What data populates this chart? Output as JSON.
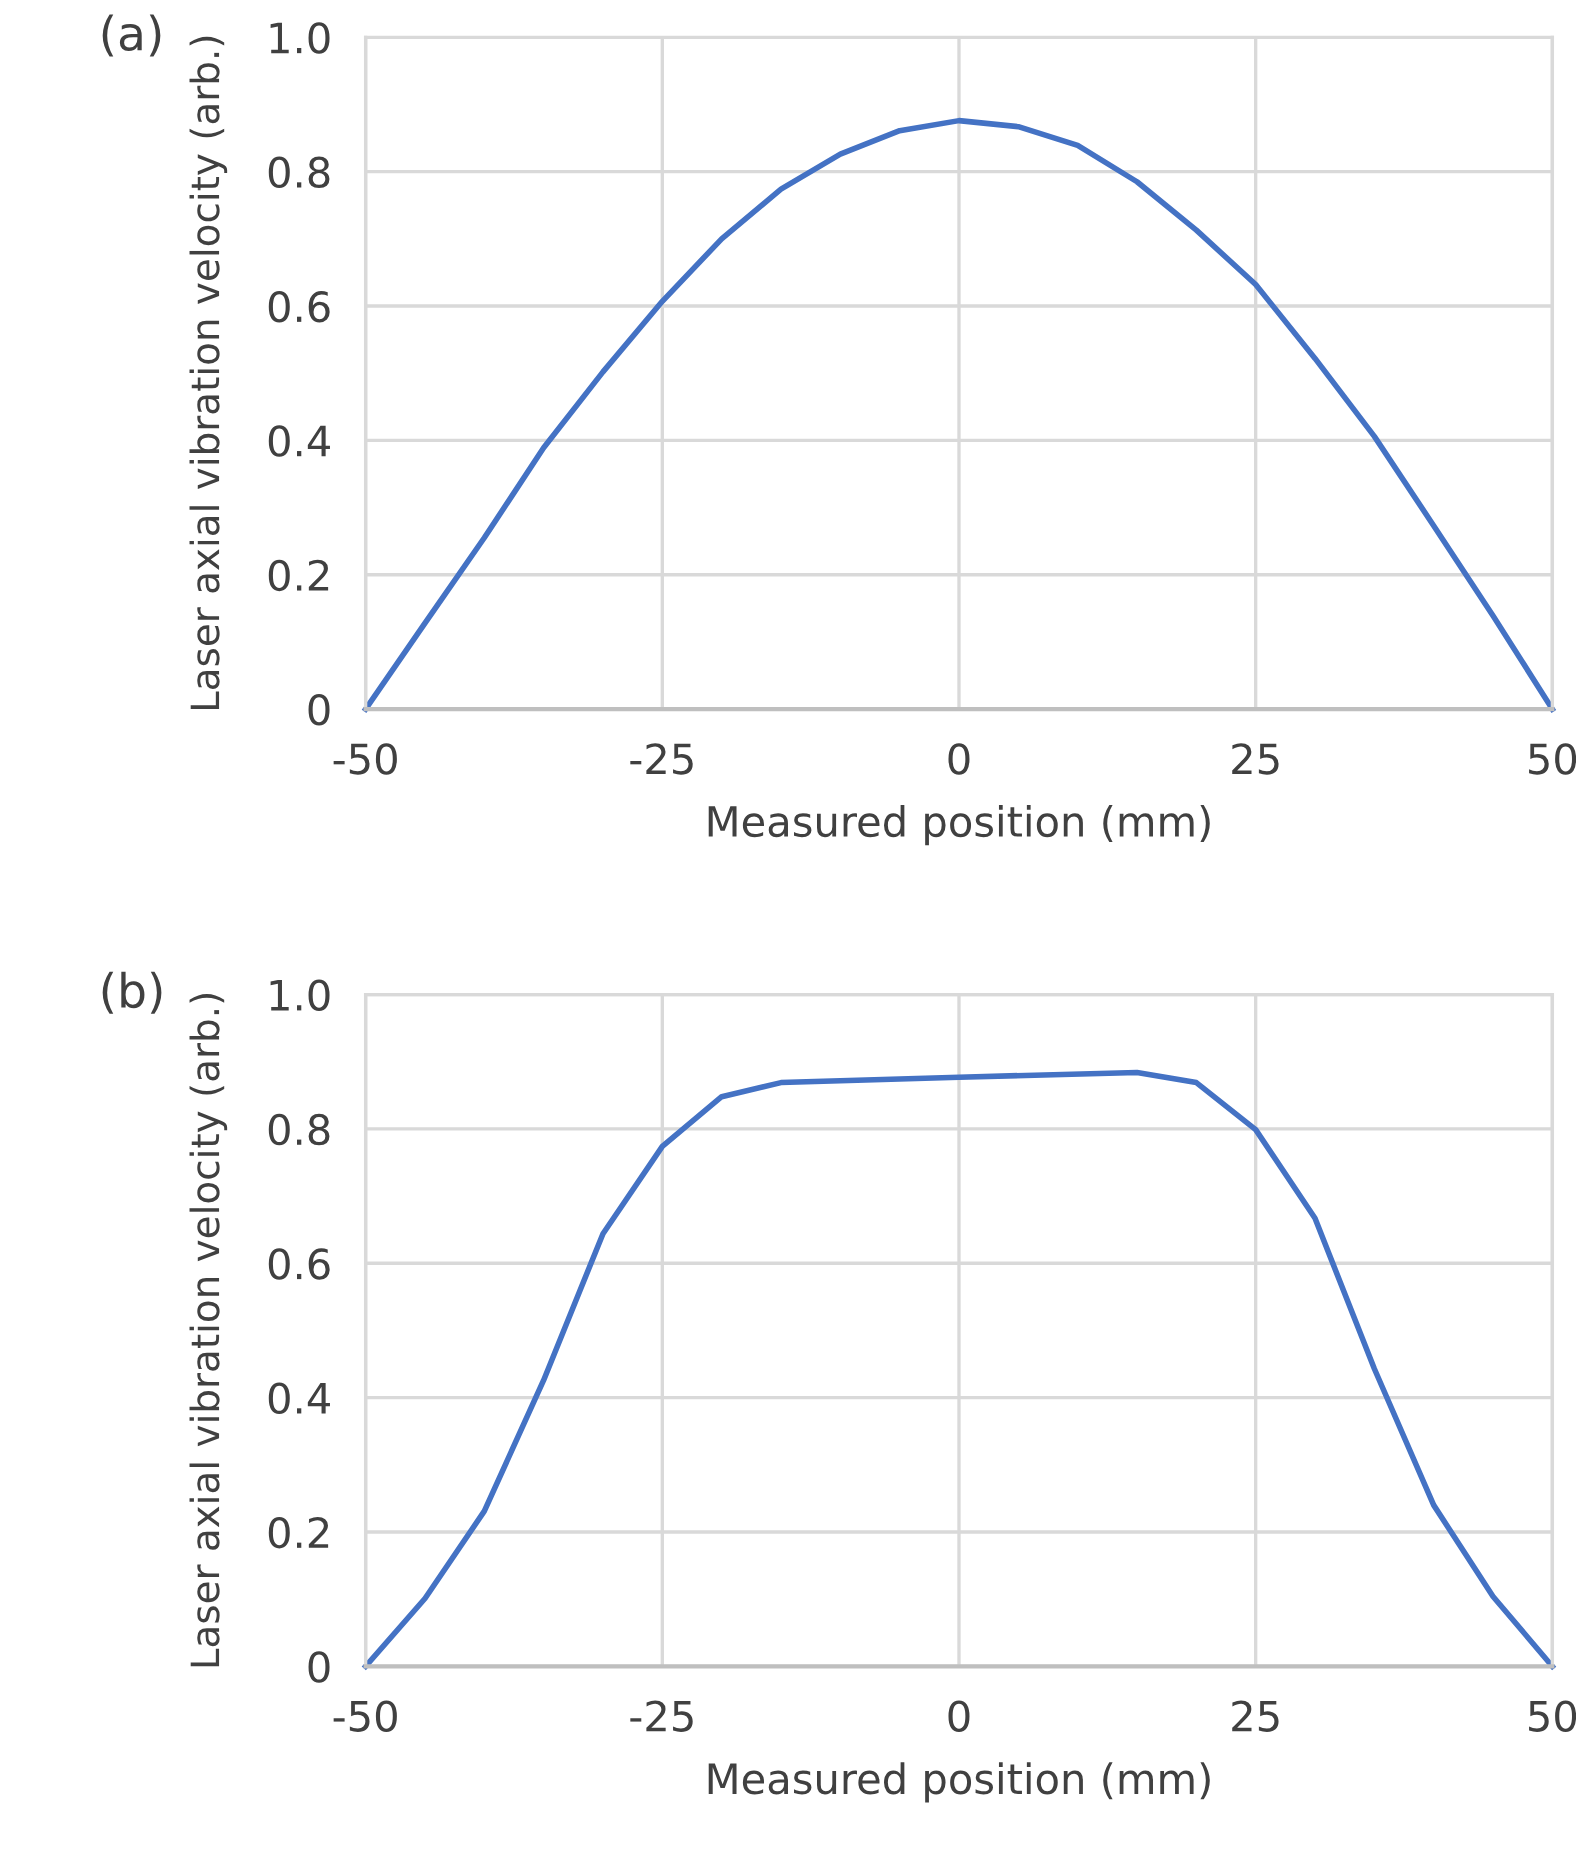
{
  "chart_data": [
    {
      "type": "line",
      "xlabel": "Measured position (mm)",
      "ylabel": "Laser axial vibration velocity (arb.)",
      "annotations": [
        "(a)"
      ],
      "x": [
        -50,
        -45,
        -40,
        -35,
        -30,
        -25,
        -20,
        -15,
        -10,
        -5,
        0,
        5,
        10,
        15,
        20,
        25,
        30,
        35,
        40,
        45,
        50
      ],
      "series": [
        {
          "color": "#4472c4",
          "values": [
            0,
            0.128,
            0.255,
            0.389,
            0.502,
            0.607,
            0.7,
            0.774,
            0.826,
            0.861,
            0.876,
            0.867,
            0.839,
            0.785,
            0.713,
            0.632,
            0.522,
            0.406,
            0.273,
            0.139,
            0
          ]
        }
      ],
      "xlim": [
        -50,
        50
      ],
      "xticks": [
        -50,
        -25,
        0,
        25,
        50
      ],
      "ylim": [
        0,
        1.0
      ],
      "yticks": [
        0,
        0.2,
        0.4,
        0.6,
        0.8,
        {
          "value": 1.0,
          "label": "1.0"
        }
      ],
      "grid": true,
      "legend": false
    },
    {
      "type": "line",
      "xlabel": "Measured position (mm)",
      "ylabel": "Laser axial vibration velocity (arb.)",
      "annotations": [
        "(b)"
      ],
      "x": [
        -50,
        -45,
        -40,
        -35,
        -30,
        -25,
        -20,
        -15,
        0,
        15,
        20,
        25,
        30,
        35,
        40,
        45,
        50
      ],
      "series": [
        {
          "color": "#4472c4",
          "values": [
            0,
            0.101,
            0.231,
            0.426,
            0.644,
            0.774,
            0.848,
            0.869,
            0.877,
            0.884,
            0.869,
            0.799,
            0.667,
            0.443,
            0.24,
            0.104,
            0
          ]
        }
      ],
      "xlim": [
        -50,
        50
      ],
      "xticks": [
        -50,
        -25,
        0,
        25,
        50
      ],
      "ylim": [
        0,
        1.0
      ],
      "yticks": [
        0,
        0.2,
        0.4,
        0.6,
        0.8,
        {
          "value": 1.0,
          "label": "1.0"
        }
      ],
      "grid": true,
      "legend": false
    }
  ]
}
